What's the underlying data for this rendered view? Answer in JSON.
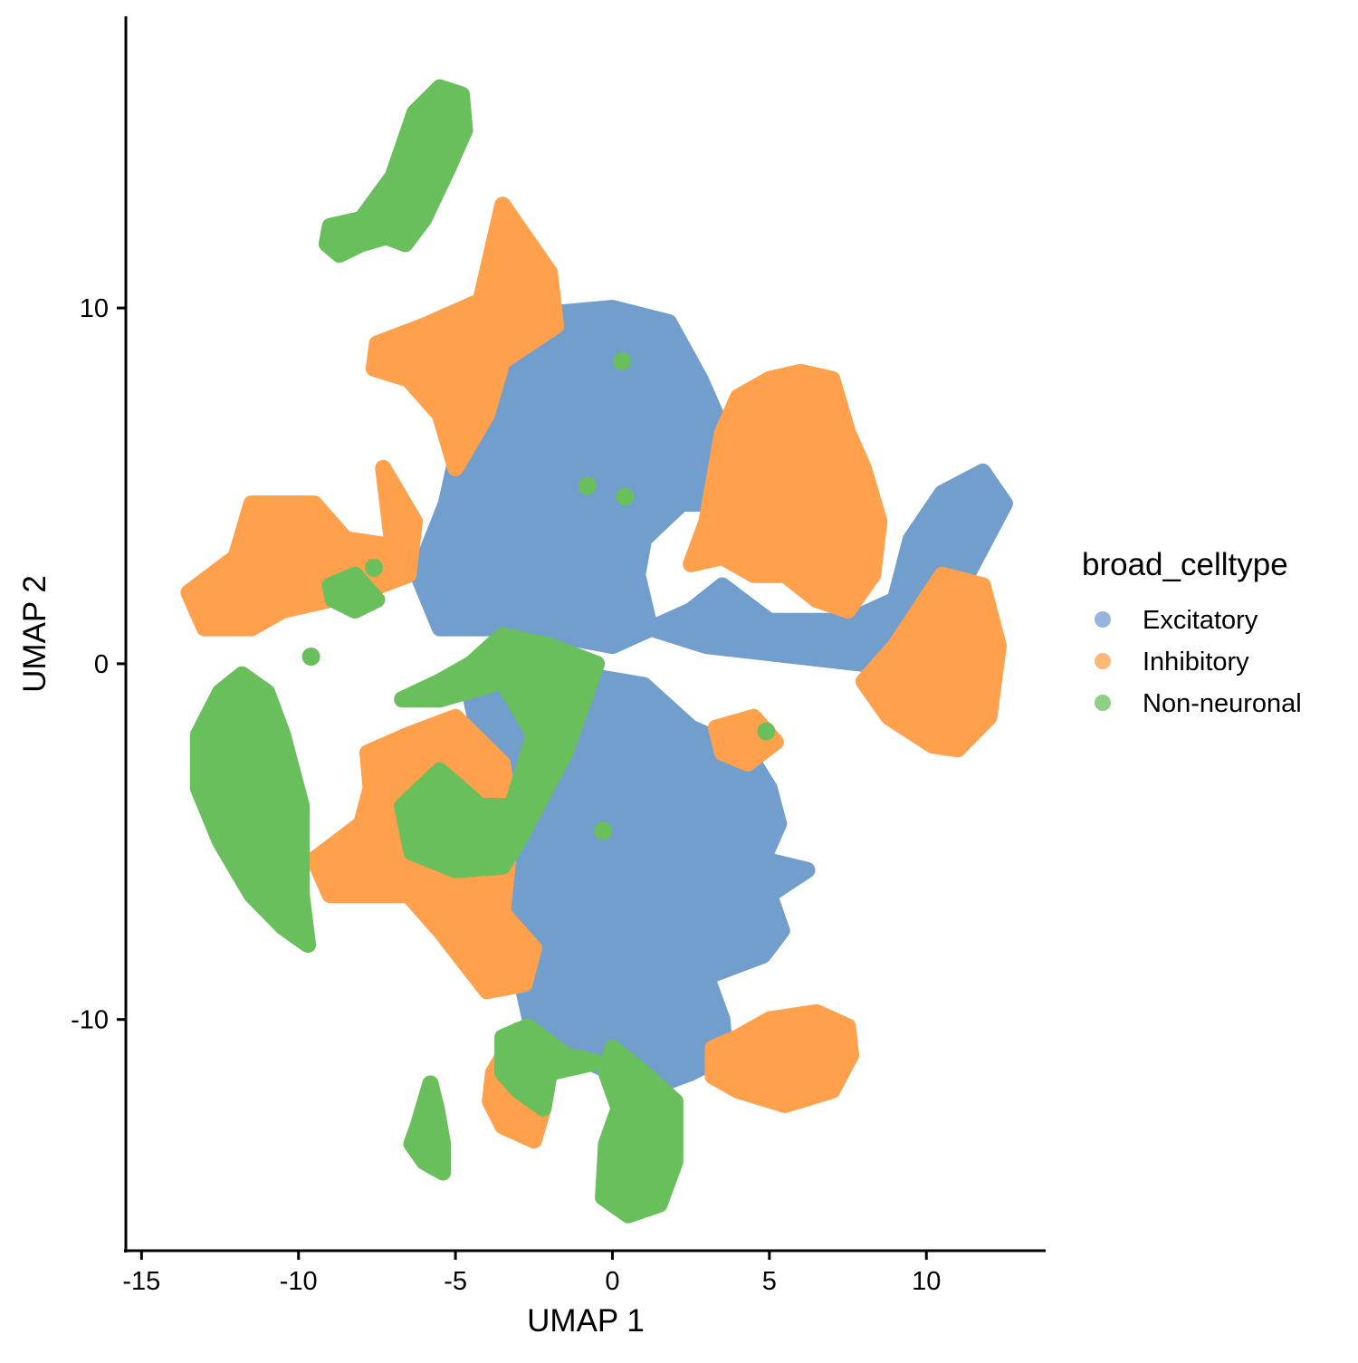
{
  "chart_data": {
    "type": "scatter",
    "title": "",
    "xlabel": "UMAP 1",
    "ylabel": "UMAP 2",
    "xlim": [
      -15.5,
      13.8
    ],
    "ylim": [
      -16.5,
      18.2
    ],
    "x_ticks": [
      -15,
      -10,
      -5,
      0,
      5,
      10
    ],
    "x_tick_labels": [
      "-15",
      "-10",
      "-5",
      "0",
      "5",
      "10"
    ],
    "y_ticks": [
      -10,
      0,
      10
    ],
    "y_tick_labels": [
      "-10",
      "0",
      "10"
    ],
    "grid": false,
    "legend_position": "right",
    "legend_title": "broad_celltype",
    "series": [
      {
        "name": "Excitatory",
        "color": "#729ECE",
        "clusters": [
          {
            "label": "main-upper",
            "points": [
              [
                -4.2,
                9.0
              ],
              [
                -2.5,
                9.8
              ],
              [
                0.0,
                10.0
              ],
              [
                1.8,
                9.6
              ],
              [
                2.8,
                8.0
              ],
              [
                3.8,
                6.0
              ],
              [
                3.5,
                4.5
              ],
              [
                2.2,
                4.5
              ],
              [
                1.0,
                3.5
              ],
              [
                0.8,
                2.5
              ],
              [
                1.2,
                1.0
              ],
              [
                3.0,
                0.5
              ],
              [
                6.0,
                0.2
              ],
              [
                8.0,
                0.0
              ],
              [
                9.5,
                0.5
              ],
              [
                11.0,
                2.0
              ],
              [
                12.5,
                4.5
              ],
              [
                11.8,
                5.4
              ],
              [
                10.5,
                4.8
              ],
              [
                9.5,
                3.5
              ],
              [
                9.0,
                1.8
              ],
              [
                7.5,
                1.2
              ],
              [
                5.0,
                1.2
              ],
              [
                3.5,
                2.2
              ],
              [
                2.5,
                1.5
              ],
              [
                0.0,
                0.5
              ],
              [
                -3.0,
                1.0
              ],
              [
                -5.5,
                1.0
              ],
              [
                -6.2,
                2.5
              ],
              [
                -5.3,
                4.5
              ],
              [
                -4.8,
                6.5
              ],
              [
                -4.5,
                8.0
              ]
            ]
          },
          {
            "label": "main-lower",
            "points": [
              [
                -4.5,
                -1.0
              ],
              [
                -3.0,
                -0.5
              ],
              [
                -1.0,
                -0.3
              ],
              [
                1.0,
                -0.6
              ],
              [
                2.5,
                -1.8
              ],
              [
                4.3,
                -2.5
              ],
              [
                5.0,
                -3.5
              ],
              [
                5.3,
                -4.5
              ],
              [
                4.8,
                -5.5
              ],
              [
                6.2,
                -5.8
              ],
              [
                5.0,
                -6.5
              ],
              [
                5.4,
                -7.5
              ],
              [
                4.8,
                -8.2
              ],
              [
                3.0,
                -8.8
              ],
              [
                3.5,
                -10.0
              ],
              [
                3.6,
                -11.0
              ],
              [
                2.5,
                -11.5
              ],
              [
                1.0,
                -12.0
              ],
              [
                0.0,
                -11.5
              ],
              [
                -2.5,
                -10.5
              ],
              [
                -3.0,
                -8.5
              ],
              [
                -3.5,
                -6.5
              ],
              [
                -3.2,
                -5.0
              ],
              [
                -4.0,
                -3.0
              ]
            ]
          }
        ]
      },
      {
        "name": "Inhibitory",
        "color": "#FFA04C",
        "clusters": [
          {
            "label": "upper-left",
            "points": [
              [
                -7.5,
                9.0
              ],
              [
                -6.0,
                9.5
              ],
              [
                -4.2,
                10.2
              ],
              [
                -3.5,
                12.9
              ],
              [
                -2.0,
                11.0
              ],
              [
                -1.8,
                9.5
              ],
              [
                -3.5,
                8.5
              ],
              [
                -4.0,
                7.0
              ],
              [
                -5.0,
                5.5
              ],
              [
                -5.5,
                7.0
              ],
              [
                -6.5,
                8.0
              ],
              [
                -7.6,
                8.3
              ]
            ]
          },
          {
            "label": "left",
            "points": [
              [
                -13.5,
                2.0
              ],
              [
                -12.0,
                3.0
              ],
              [
                -11.5,
                4.5
              ],
              [
                -9.5,
                4.5
              ],
              [
                -8.5,
                3.5
              ],
              [
                -7.0,
                3.3
              ],
              [
                -7.3,
                5.5
              ],
              [
                -6.3,
                4.0
              ],
              [
                -6.5,
                2.5
              ],
              [
                -8.0,
                2.0
              ],
              [
                -9.0,
                1.8
              ],
              [
                -10.5,
                1.5
              ],
              [
                -11.5,
                1.0
              ],
              [
                -13.0,
                1.0
              ]
            ]
          },
          {
            "label": "middle-left",
            "points": [
              [
                -7.8,
                -2.5
              ],
              [
                -6.5,
                -2.0
              ],
              [
                -5.0,
                -1.5
              ],
              [
                -3.5,
                -2.8
              ],
              [
                -3.2,
                -4.5
              ],
              [
                -3.5,
                -7.0
              ],
              [
                -2.5,
                -8.0
              ],
              [
                -2.8,
                -9.0
              ],
              [
                -4.0,
                -9.2
              ],
              [
                -5.5,
                -7.5
              ],
              [
                -6.5,
                -6.5
              ],
              [
                -7.5,
                -6.5
              ],
              [
                -9.0,
                -6.5
              ],
              [
                -9.5,
                -5.5
              ],
              [
                -8.0,
                -4.5
              ],
              [
                -7.7,
                -3.5
              ]
            ]
          },
          {
            "label": "right-upper",
            "points": [
              [
                3.5,
                6.5
              ],
              [
                4.0,
                7.5
              ],
              [
                5.0,
                8.0
              ],
              [
                6.0,
                8.2
              ],
              [
                7.0,
                8.0
              ],
              [
                7.5,
                6.5
              ],
              [
                8.0,
                5.5
              ],
              [
                8.5,
                4.0
              ],
              [
                8.3,
                2.5
              ],
              [
                7.5,
                1.5
              ],
              [
                6.5,
                1.8
              ],
              [
                5.5,
                2.5
              ],
              [
                4.5,
                2.5
              ],
              [
                3.5,
                3.0
              ],
              [
                2.5,
                2.8
              ],
              [
                3.0,
                4.0
              ]
            ]
          },
          {
            "label": "right",
            "points": [
              [
                8.0,
                -0.5
              ],
              [
                9.0,
                0.5
              ],
              [
                10.5,
                2.5
              ],
              [
                11.8,
                2.2
              ],
              [
                12.3,
                0.5
              ],
              [
                12.0,
                -1.5
              ],
              [
                11.0,
                -2.4
              ],
              [
                10.2,
                -2.3
              ],
              [
                8.8,
                -1.5
              ]
            ]
          },
          {
            "label": "lower-right",
            "points": [
              [
                3.2,
                -10.8
              ],
              [
                4.0,
                -10.5
              ],
              [
                5.0,
                -10.0
              ],
              [
                6.5,
                -9.8
              ],
              [
                7.5,
                -10.2
              ],
              [
                7.6,
                -11.0
              ],
              [
                7.0,
                -12.0
              ],
              [
                5.5,
                -12.4
              ],
              [
                4.0,
                -12.0
              ],
              [
                3.2,
                -11.6
              ]
            ]
          },
          {
            "label": "lower-middle",
            "points": [
              [
                -3.8,
                -11.5
              ],
              [
                -3.0,
                -10.3
              ],
              [
                -2.0,
                -10.8
              ],
              [
                -2.2,
                -12.5
              ],
              [
                -2.5,
                -13.4
              ],
              [
                -3.5,
                -13.0
              ],
              [
                -3.9,
                -12.3
              ]
            ]
          },
          {
            "label": "small-center-right",
            "points": [
              [
                3.3,
                -1.8
              ],
              [
                4.5,
                -1.5
              ],
              [
                5.2,
                -2.2
              ],
              [
                4.3,
                -2.8
              ],
              [
                3.5,
                -2.5
              ]
            ]
          }
        ]
      },
      {
        "name": "Non-neuronal",
        "color": "#6ABF5D",
        "clusters": [
          {
            "label": "top",
            "points": [
              [
                -9.0,
                12.3
              ],
              [
                -8.0,
                12.5
              ],
              [
                -7.0,
                13.7
              ],
              [
                -6.3,
                15.5
              ],
              [
                -5.5,
                16.2
              ],
              [
                -4.8,
                16.0
              ],
              [
                -4.7,
                15.0
              ],
              [
                -5.2,
                14.0
              ],
              [
                -6.0,
                12.5
              ],
              [
                -6.6,
                11.8
              ],
              [
                -7.2,
                12.0
              ],
              [
                -8.0,
                11.8
              ],
              [
                -8.7,
                11.5
              ],
              [
                -9.1,
                11.8
              ]
            ]
          },
          {
            "label": "left-large",
            "points": [
              [
                -11.8,
                -0.3
              ],
              [
                -11.0,
                -0.8
              ],
              [
                -10.5,
                -2.0
              ],
              [
                -9.9,
                -4.0
              ],
              [
                -9.9,
                -6.5
              ],
              [
                -9.7,
                -7.9
              ],
              [
                -10.5,
                -7.4
              ],
              [
                -11.5,
                -6.5
              ],
              [
                -12.5,
                -5.0
              ],
              [
                -13.2,
                -3.5
              ],
              [
                -13.2,
                -2.0
              ],
              [
                -12.5,
                -0.8
              ]
            ]
          },
          {
            "label": "center-arc",
            "points": [
              [
                -6.7,
                -1.0
              ],
              [
                -5.5,
                -0.5
              ],
              [
                -4.5,
                0.0
              ],
              [
                -3.5,
                0.8
              ],
              [
                -2.0,
                0.5
              ],
              [
                -0.5,
                0.0
              ],
              [
                -1.5,
                -2.5
              ],
              [
                -3.0,
                -5.0
              ],
              [
                -3.5,
                -5.7
              ],
              [
                -5.0,
                -5.8
              ],
              [
                -6.4,
                -5.3
              ],
              [
                -6.7,
                -4.0
              ],
              [
                -5.5,
                -3.0
              ],
              [
                -4.2,
                -4.0
              ],
              [
                -3.2,
                -4.0
              ],
              [
                -2.5,
                -2.0
              ],
              [
                -3.5,
                -0.5
              ],
              [
                -5.5,
                -1.0
              ]
            ]
          },
          {
            "label": "left-small",
            "points": [
              [
                -9.0,
                2.2
              ],
              [
                -8.2,
                2.5
              ],
              [
                -7.5,
                1.8
              ],
              [
                -8.2,
                1.5
              ],
              [
                -8.9,
                1.8
              ]
            ]
          },
          {
            "label": "bottom",
            "points": [
              [
                0.0,
                -10.8
              ],
              [
                1.0,
                -11.5
              ],
              [
                2.0,
                -12.3
              ],
              [
                2.0,
                -14.0
              ],
              [
                1.5,
                -15.2
              ],
              [
                0.5,
                -15.5
              ],
              [
                -0.3,
                -15.0
              ],
              [
                -0.2,
                -13.5
              ],
              [
                0.2,
                -12.5
              ],
              [
                -0.2,
                -11.5
              ]
            ]
          },
          {
            "label": "bottom-left-middle",
            "points": [
              [
                -3.5,
                -10.5
              ],
              [
                -2.7,
                -10.2
              ],
              [
                -1.5,
                -11.0
              ],
              [
                -0.5,
                -11.2
              ],
              [
                -2.0,
                -11.5
              ],
              [
                -2.2,
                -12.5
              ],
              [
                -3.0,
                -12.0
              ],
              [
                -3.5,
                -11.5
              ]
            ]
          },
          {
            "label": "bottom-left-thin",
            "points": [
              [
                -6.2,
                -13.0
              ],
              [
                -5.8,
                -11.8
              ],
              [
                -5.6,
                -12.5
              ],
              [
                -5.4,
                -13.5
              ],
              [
                -5.4,
                -14.3
              ],
              [
                -6.0,
                -14.0
              ],
              [
                -6.4,
                -13.5
              ]
            ]
          },
          {
            "label": "specks",
            "points": [
              [
                0.3,
                8.5
              ],
              [
                -0.8,
                5.0
              ],
              [
                0.4,
                4.7
              ],
              [
                -0.3,
                -4.7
              ],
              [
                4.9,
                -1.9
              ],
              [
                -7.6,
                2.7
              ],
              [
                -9.6,
                0.2
              ]
            ]
          }
        ]
      }
    ]
  }
}
